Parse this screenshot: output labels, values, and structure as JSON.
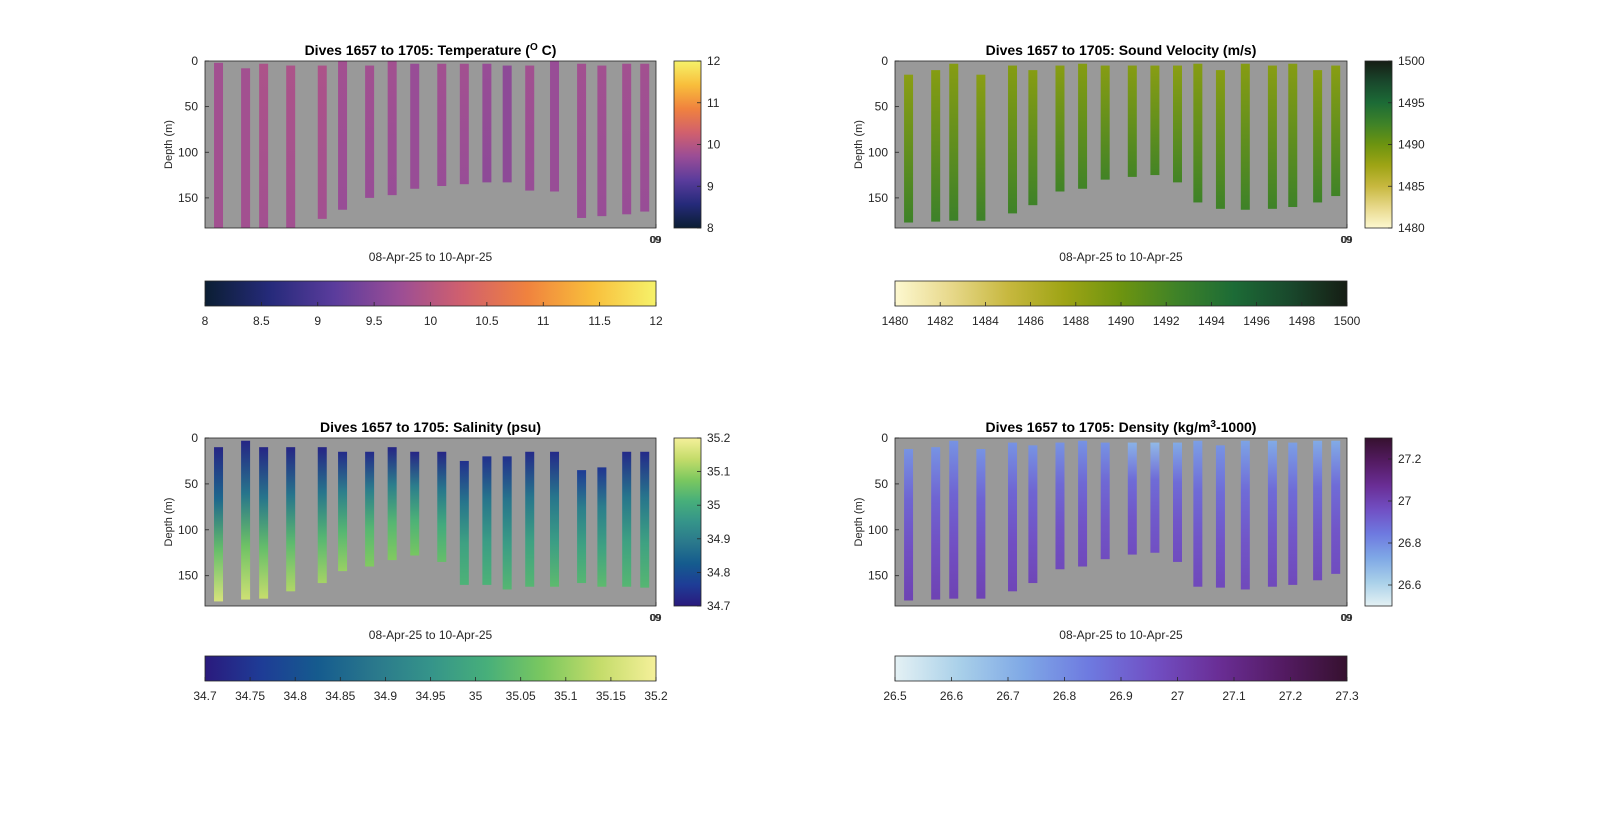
{
  "figure": {
    "background": "#ffffff",
    "plot_background": "#999999"
  },
  "chart_data": [
    {
      "type": "heatmap",
      "title": "Dives 1657 to 1705: Temperature (",
      "title_sup": "O",
      "title_tail": " C)",
      "xlabel": "08-Apr-25 to 10-Apr-25",
      "ylabel": "Depth (m)",
      "y_ticks": [
        "0",
        "50",
        "100",
        "150"
      ],
      "ylim": [
        0,
        183
      ],
      "y_reversed": true,
      "x_end_tick": "09",
      "grid": false,
      "colormap": "thermal",
      "colormap_stops": [
        "#0b1e33",
        "#252a7a",
        "#5a3c9c",
        "#9a4d96",
        "#d1606d",
        "#f0823e",
        "#f8be3b",
        "#f6f26a"
      ],
      "clim": [
        8,
        12
      ],
      "colorbar_vertical_ticks": [
        "8",
        "9",
        "10",
        "11",
        "12"
      ],
      "colorbar_horizontal_ticks": [
        "8",
        "8.5",
        "9",
        "9.5",
        "10",
        "10.5",
        "11",
        "11.5",
        "12"
      ],
      "profiles": [
        {
          "x": 0.03,
          "top": 2,
          "bottom": 183,
          "values": [
            9.8,
            9.8
          ]
        },
        {
          "x": 0.09,
          "top": 8,
          "bottom": 183,
          "values": [
            9.8,
            9.8
          ]
        },
        {
          "x": 0.13,
          "top": 3,
          "bottom": 183,
          "values": [
            9.9,
            9.8
          ]
        },
        {
          "x": 0.19,
          "top": 5,
          "bottom": 183,
          "values": [
            9.9,
            9.8
          ]
        },
        {
          "x": 0.26,
          "top": 5,
          "bottom": 173,
          "values": [
            9.9,
            9.8
          ]
        },
        {
          "x": 0.305,
          "top": 0,
          "bottom": 163,
          "values": [
            9.8,
            9.7
          ]
        },
        {
          "x": 0.365,
          "top": 5,
          "bottom": 150,
          "values": [
            9.8,
            9.7
          ]
        },
        {
          "x": 0.415,
          "top": 0,
          "bottom": 147,
          "values": [
            9.8,
            9.7
          ]
        },
        {
          "x": 0.465,
          "top": 3,
          "bottom": 140,
          "values": [
            9.7,
            9.7
          ]
        },
        {
          "x": 0.525,
          "top": 3,
          "bottom": 137,
          "values": [
            9.8,
            9.7
          ]
        },
        {
          "x": 0.575,
          "top": 3,
          "bottom": 135,
          "values": [
            9.8,
            9.7
          ]
        },
        {
          "x": 0.625,
          "top": 3,
          "bottom": 133,
          "values": [
            9.7,
            9.6
          ]
        },
        {
          "x": 0.67,
          "top": 5,
          "bottom": 133,
          "values": [
            9.6,
            9.6
          ]
        },
        {
          "x": 0.72,
          "top": 5,
          "bottom": 142,
          "values": [
            9.8,
            9.7
          ]
        },
        {
          "x": 0.775,
          "top": 0,
          "bottom": 143,
          "values": [
            9.7,
            9.7
          ]
        },
        {
          "x": 0.835,
          "top": 3,
          "bottom": 172,
          "values": [
            9.8,
            9.7
          ]
        },
        {
          "x": 0.88,
          "top": 5,
          "bottom": 170,
          "values": [
            9.8,
            9.7
          ]
        },
        {
          "x": 0.935,
          "top": 3,
          "bottom": 168,
          "values": [
            9.8,
            9.7
          ]
        },
        {
          "x": 0.975,
          "top": 3,
          "bottom": 165,
          "values": [
            9.8,
            9.7
          ]
        }
      ]
    },
    {
      "type": "heatmap",
      "title": "Dives 1657 to 1705: Sound Velocity (m/s)",
      "xlabel": "08-Apr-25 to 10-Apr-25",
      "ylabel": "Depth (m)",
      "y_ticks": [
        "0",
        "50",
        "100",
        "150"
      ],
      "ylim": [
        0,
        183
      ],
      "y_reversed": true,
      "x_end_tick": "09",
      "grid": false,
      "colormap": "speed",
      "colormap_stops": [
        "#fdf8d0",
        "#e7d88a",
        "#c7b83f",
        "#9ea415",
        "#6d9410",
        "#3e8228",
        "#1c6b36",
        "#19482c",
        "#161d14"
      ],
      "clim": [
        1480,
        1500
      ],
      "colorbar_vertical_ticks": [
        "1480",
        "1485",
        "1490",
        "1495",
        "1500"
      ],
      "colorbar_horizontal_ticks": [
        "1480",
        "1482",
        "1484",
        "1486",
        "1488",
        "1490",
        "1492",
        "1494",
        "1496",
        "1498",
        "1500"
      ],
      "profiles": [
        {
          "x": 0.03,
          "top": 15,
          "bottom": 177,
          "values": [
            1488.5,
            1492.5
          ]
        },
        {
          "x": 0.09,
          "top": 10,
          "bottom": 176,
          "values": [
            1488.8,
            1492.6
          ]
        },
        {
          "x": 0.13,
          "top": 3,
          "bottom": 175,
          "values": [
            1488.7,
            1492.6
          ]
        },
        {
          "x": 0.19,
          "top": 15,
          "bottom": 175,
          "values": [
            1488.5,
            1492.6
          ]
        },
        {
          "x": 0.26,
          "top": 5,
          "bottom": 167,
          "values": [
            1488.8,
            1492.5
          ]
        },
        {
          "x": 0.305,
          "top": 10,
          "bottom": 158,
          "values": [
            1488.7,
            1492.5
          ]
        },
        {
          "x": 0.365,
          "top": 5,
          "bottom": 143,
          "values": [
            1488.6,
            1492.4
          ]
        },
        {
          "x": 0.415,
          "top": 3,
          "bottom": 140,
          "values": [
            1488.8,
            1492.4
          ]
        },
        {
          "x": 0.465,
          "top": 5,
          "bottom": 130,
          "values": [
            1488.7,
            1492.3
          ]
        },
        {
          "x": 0.525,
          "top": 5,
          "bottom": 127,
          "values": [
            1488.7,
            1492.2
          ]
        },
        {
          "x": 0.575,
          "top": 5,
          "bottom": 125,
          "values": [
            1488.6,
            1492.2
          ]
        },
        {
          "x": 0.625,
          "top": 5,
          "bottom": 133,
          "values": [
            1488.5,
            1492.3
          ]
        },
        {
          "x": 0.67,
          "top": 3,
          "bottom": 155,
          "values": [
            1488.7,
            1492.5
          ]
        },
        {
          "x": 0.72,
          "top": 10,
          "bottom": 162,
          "values": [
            1488.6,
            1492.5
          ]
        },
        {
          "x": 0.775,
          "top": 3,
          "bottom": 163,
          "values": [
            1488.7,
            1492.5
          ]
        },
        {
          "x": 0.835,
          "top": 5,
          "bottom": 162,
          "values": [
            1488.6,
            1492.5
          ]
        },
        {
          "x": 0.88,
          "top": 3,
          "bottom": 160,
          "values": [
            1488.7,
            1492.5
          ]
        },
        {
          "x": 0.935,
          "top": 10,
          "bottom": 155,
          "values": [
            1488.6,
            1492.5
          ]
        },
        {
          "x": 0.975,
          "top": 5,
          "bottom": 148,
          "values": [
            1488.6,
            1492.4
          ]
        }
      ]
    },
    {
      "type": "heatmap",
      "title": "Dives 1657 to 1705: Salinity (psu)",
      "xlabel": "08-Apr-25 to 10-Apr-25",
      "ylabel": "Depth (m)",
      "y_ticks": [
        "0",
        "50",
        "100",
        "150"
      ],
      "ylim": [
        0,
        183
      ],
      "y_reversed": true,
      "x_end_tick": "09",
      "grid": false,
      "colormap": "haline",
      "colormap_stops": [
        "#2a1a7d",
        "#1e3c96",
        "#155b8e",
        "#2a788c",
        "#35948a",
        "#47af7a",
        "#7bc85f",
        "#c4dc6a",
        "#f5f09a"
      ],
      "clim": [
        34.7,
        35.2
      ],
      "colorbar_vertical_ticks": [
        "34.7",
        "34.8",
        "34.9",
        "35",
        "35.1",
        "35.2"
      ],
      "colorbar_horizontal_ticks": [
        "34.7",
        "34.75",
        "34.8",
        "34.85",
        "34.9",
        "34.95",
        "35",
        "35.05",
        "35.1",
        "35.15",
        "35.2"
      ],
      "profiles": [
        {
          "x": 0.03,
          "top": 10,
          "bottom": 178,
          "values": [
            34.72,
            34.85,
            35.05,
            35.16
          ]
        },
        {
          "x": 0.09,
          "top": 3,
          "bottom": 176,
          "values": [
            34.72,
            34.88,
            35.06,
            35.15
          ]
        },
        {
          "x": 0.13,
          "top": 10,
          "bottom": 175,
          "values": [
            34.72,
            34.88,
            35.05,
            35.14
          ]
        },
        {
          "x": 0.19,
          "top": 10,
          "bottom": 167,
          "values": [
            34.72,
            34.88,
            35.04,
            35.12
          ]
        },
        {
          "x": 0.26,
          "top": 10,
          "bottom": 158,
          "values": [
            34.72,
            34.88,
            35.03,
            35.11
          ]
        },
        {
          "x": 0.305,
          "top": 15,
          "bottom": 145,
          "values": [
            34.73,
            34.9,
            35.03,
            35.1
          ]
        },
        {
          "x": 0.365,
          "top": 15,
          "bottom": 140,
          "values": [
            34.73,
            34.9,
            35.03,
            35.08
          ]
        },
        {
          "x": 0.415,
          "top": 10,
          "bottom": 133,
          "values": [
            34.72,
            34.9,
            35.03,
            35.08
          ]
        },
        {
          "x": 0.465,
          "top": 15,
          "bottom": 128,
          "values": [
            34.72,
            34.9,
            35.02,
            35.07
          ]
        },
        {
          "x": 0.525,
          "top": 15,
          "bottom": 135,
          "values": [
            34.72,
            34.88,
            35.0,
            35.05
          ]
        },
        {
          "x": 0.575,
          "top": 25,
          "bottom": 160,
          "values": [
            34.74,
            34.88,
            34.98,
            35.02
          ]
        },
        {
          "x": 0.625,
          "top": 20,
          "bottom": 160,
          "values": [
            34.74,
            34.88,
            34.97,
            35.02
          ]
        },
        {
          "x": 0.67,
          "top": 20,
          "bottom": 165,
          "values": [
            34.74,
            34.88,
            34.97,
            35.03
          ]
        },
        {
          "x": 0.72,
          "top": 15,
          "bottom": 162,
          "values": [
            34.73,
            34.88,
            34.98,
            35.03
          ]
        },
        {
          "x": 0.775,
          "top": 15,
          "bottom": 162,
          "values": [
            34.73,
            34.88,
            34.97,
            35.04
          ]
        },
        {
          "x": 0.835,
          "top": 35,
          "bottom": 158,
          "values": [
            34.76,
            34.9,
            34.98,
            35.03
          ]
        },
        {
          "x": 0.88,
          "top": 32,
          "bottom": 162,
          "values": [
            34.75,
            34.9,
            34.98,
            35.04
          ]
        },
        {
          "x": 0.935,
          "top": 15,
          "bottom": 162,
          "values": [
            34.73,
            34.88,
            34.98,
            35.03
          ]
        },
        {
          "x": 0.975,
          "top": 15,
          "bottom": 163,
          "values": [
            34.73,
            34.88,
            34.98,
            35.03
          ]
        }
      ]
    },
    {
      "type": "heatmap",
      "title": "Dives 1657 to 1705: Density (kg/m",
      "title_sup": "3",
      "title_tail": "-1000)",
      "xlabel": "08-Apr-25 to 10-Apr-25",
      "ylabel": "Depth (m)",
      "y_ticks": [
        "0",
        "50",
        "100",
        "150"
      ],
      "ylim": [
        0,
        183
      ],
      "y_reversed": true,
      "x_end_tick": "09",
      "grid": false,
      "colormap": "dense",
      "colormap_stops": [
        "#e4f1f4",
        "#a9d0e9",
        "#7fa8e6",
        "#6e7ae0",
        "#7150c4",
        "#6a2e96",
        "#541b63",
        "#36112f"
      ],
      "clim": [
        26.5,
        27.3
      ],
      "colorbar_vertical_ticks": [
        "26.6",
        "26.8",
        "27",
        "27.2"
      ],
      "colorbar_horizontal_ticks": [
        "26.5",
        "26.6",
        "26.7",
        "26.8",
        "26.9",
        "27",
        "27.1",
        "27.2",
        "27.3"
      ],
      "profiles": [
        {
          "x": 0.03,
          "top": 12,
          "bottom": 177,
          "values": [
            26.78,
            26.9,
            26.96,
            27.0
          ]
        },
        {
          "x": 0.09,
          "top": 10,
          "bottom": 176,
          "values": [
            26.78,
            26.9,
            26.96,
            27.0
          ]
        },
        {
          "x": 0.13,
          "top": 3,
          "bottom": 175,
          "values": [
            26.78,
            26.9,
            26.96,
            27.0
          ]
        },
        {
          "x": 0.19,
          "top": 12,
          "bottom": 175,
          "values": [
            26.78,
            26.9,
            26.96,
            27.0
          ]
        },
        {
          "x": 0.26,
          "top": 5,
          "bottom": 167,
          "values": [
            26.78,
            26.9,
            26.96,
            26.99
          ]
        },
        {
          "x": 0.305,
          "top": 8,
          "bottom": 158,
          "values": [
            26.78,
            26.9,
            26.95,
            26.99
          ]
        },
        {
          "x": 0.365,
          "top": 5,
          "bottom": 143,
          "values": [
            26.78,
            26.89,
            26.95,
            26.98
          ]
        },
        {
          "x": 0.415,
          "top": 3,
          "bottom": 140,
          "values": [
            26.78,
            26.89,
            26.95,
            26.98
          ]
        },
        {
          "x": 0.465,
          "top": 5,
          "bottom": 132,
          "values": [
            26.78,
            26.89,
            26.94,
            26.97
          ]
        },
        {
          "x": 0.525,
          "top": 5,
          "bottom": 127,
          "values": [
            26.7,
            26.88,
            26.94,
            26.97
          ]
        },
        {
          "x": 0.575,
          "top": 5,
          "bottom": 125,
          "values": [
            26.68,
            26.88,
            26.93,
            26.96
          ]
        },
        {
          "x": 0.625,
          "top": 5,
          "bottom": 135,
          "values": [
            26.72,
            26.88,
            26.94,
            26.97
          ]
        },
        {
          "x": 0.67,
          "top": 3,
          "bottom": 162,
          "values": [
            26.75,
            26.88,
            26.94,
            26.98
          ]
        },
        {
          "x": 0.72,
          "top": 8,
          "bottom": 163,
          "values": [
            26.78,
            26.88,
            26.94,
            26.98
          ]
        },
        {
          "x": 0.775,
          "top": 3,
          "bottom": 165,
          "values": [
            26.74,
            26.88,
            26.94,
            26.98
          ]
        },
        {
          "x": 0.835,
          "top": 3,
          "bottom": 162,
          "values": [
            26.72,
            26.88,
            26.94,
            26.98
          ]
        },
        {
          "x": 0.88,
          "top": 5,
          "bottom": 160,
          "values": [
            26.75,
            26.88,
            26.94,
            26.98
          ]
        },
        {
          "x": 0.935,
          "top": 3,
          "bottom": 155,
          "values": [
            26.72,
            26.88,
            26.94,
            26.98
          ]
        },
        {
          "x": 0.975,
          "top": 3,
          "bottom": 148,
          "values": [
            26.72,
            26.88,
            26.94,
            26.97
          ]
        }
      ]
    }
  ]
}
